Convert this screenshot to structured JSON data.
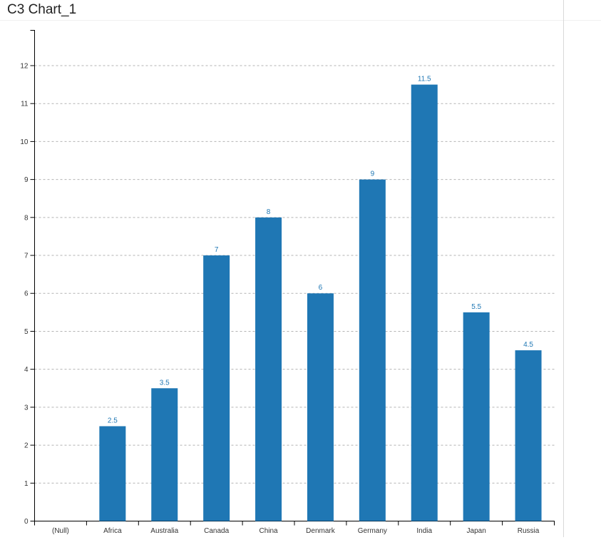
{
  "header": {
    "title": "C3 Chart_1"
  },
  "chart_data": {
    "type": "bar",
    "title": "C3 Chart_1",
    "categories": [
      "(Null)",
      "Africa",
      "Australia",
      "Canada",
      "China",
      "Denmark",
      "Germany",
      "India",
      "Japan",
      "Russia"
    ],
    "values": [
      null,
      2.5,
      3.5,
      7,
      8,
      6,
      9,
      11.5,
      5.5,
      4.5
    ],
    "data_labels": [
      "",
      "2.5",
      "3.5",
      "7",
      "8",
      "6",
      "9",
      "11.5",
      "5.5",
      "4.5"
    ],
    "y_ticks": [
      0,
      1,
      2,
      3,
      4,
      5,
      6,
      7,
      8,
      9,
      10,
      11,
      12
    ],
    "y_tick_labels": [
      "0",
      "1",
      "2",
      "3",
      "4",
      "5",
      "6",
      "7",
      "8",
      "9",
      "10",
      "11",
      "12"
    ],
    "ylim": [
      0,
      12.93
    ],
    "xlabel": "",
    "ylabel": "",
    "legend": "none",
    "grid": "horizontal-dashed",
    "colors": {
      "bar": "#1f77b4",
      "data_label": "#1f77b4",
      "gridline": "#b3b3b3",
      "axis_line": "#000000",
      "tick_text": "#333333",
      "title_text": "#222222",
      "panel_divider": "#d9d9d9",
      "header_rule": "#f0f0f0",
      "background": "#ffffff"
    }
  }
}
